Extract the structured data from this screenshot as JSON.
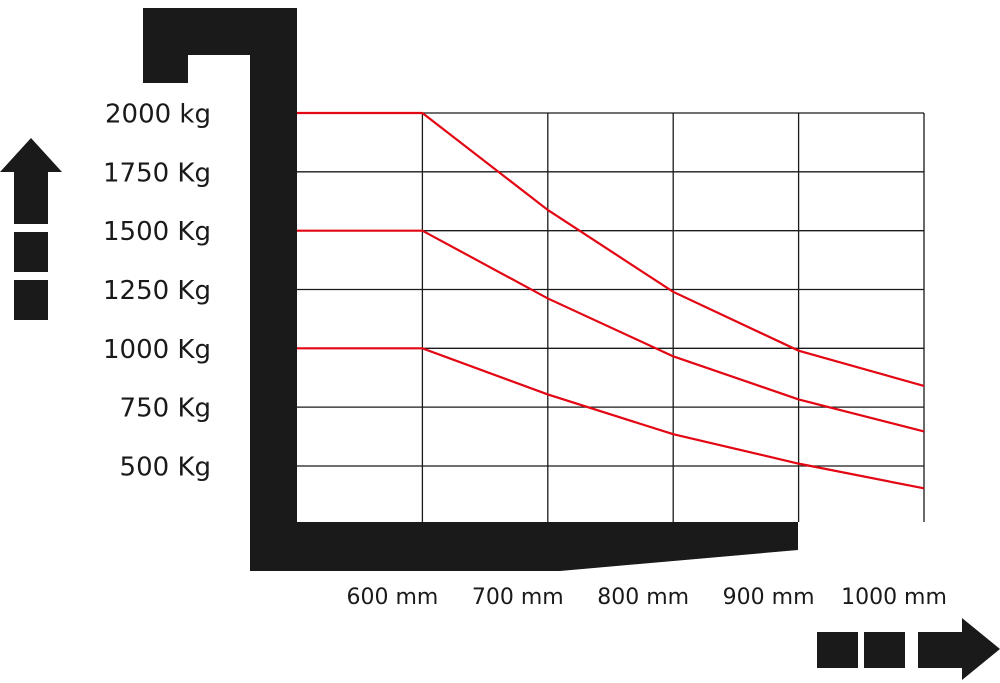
{
  "chart_data": {
    "type": "line",
    "x": [
      500,
      600,
      700,
      800,
      900,
      1000
    ],
    "series": [
      {
        "color": "#e30613",
        "values": [
          2000,
          2000,
          1588,
          1240,
          990,
          840
        ]
      },
      {
        "color": "#e30613",
        "values": [
          1500,
          1500,
          1212,
          966,
          783,
          647
        ]
      },
      {
        "color": "#e30613",
        "values": [
          1000,
          1000,
          804,
          635,
          510,
          405
        ]
      }
    ],
    "xlim": [
      500,
      1000
    ],
    "ylim": [
      262,
      2000
    ],
    "xticks": [
      {
        "value": 600,
        "label": "600 mm"
      },
      {
        "value": 700,
        "label": "700 mm"
      },
      {
        "value": 800,
        "label": "800 mm"
      },
      {
        "value": 900,
        "label": "900 mm"
      },
      {
        "value": 1000,
        "label": "1000 mm"
      }
    ],
    "yticks": [
      {
        "value": 2000,
        "label": "2000 kg"
      },
      {
        "value": 1750,
        "label": "1750 Kg"
      },
      {
        "value": 1500,
        "label": "1500 Kg"
      },
      {
        "value": 1250,
        "label": "1250 Kg"
      },
      {
        "value": 1000,
        "label": "1000 Kg"
      },
      {
        "value": 750,
        "label": "750 Kg"
      },
      {
        "value": 500,
        "label": "500 Kg"
      }
    ],
    "grid": true
  }
}
